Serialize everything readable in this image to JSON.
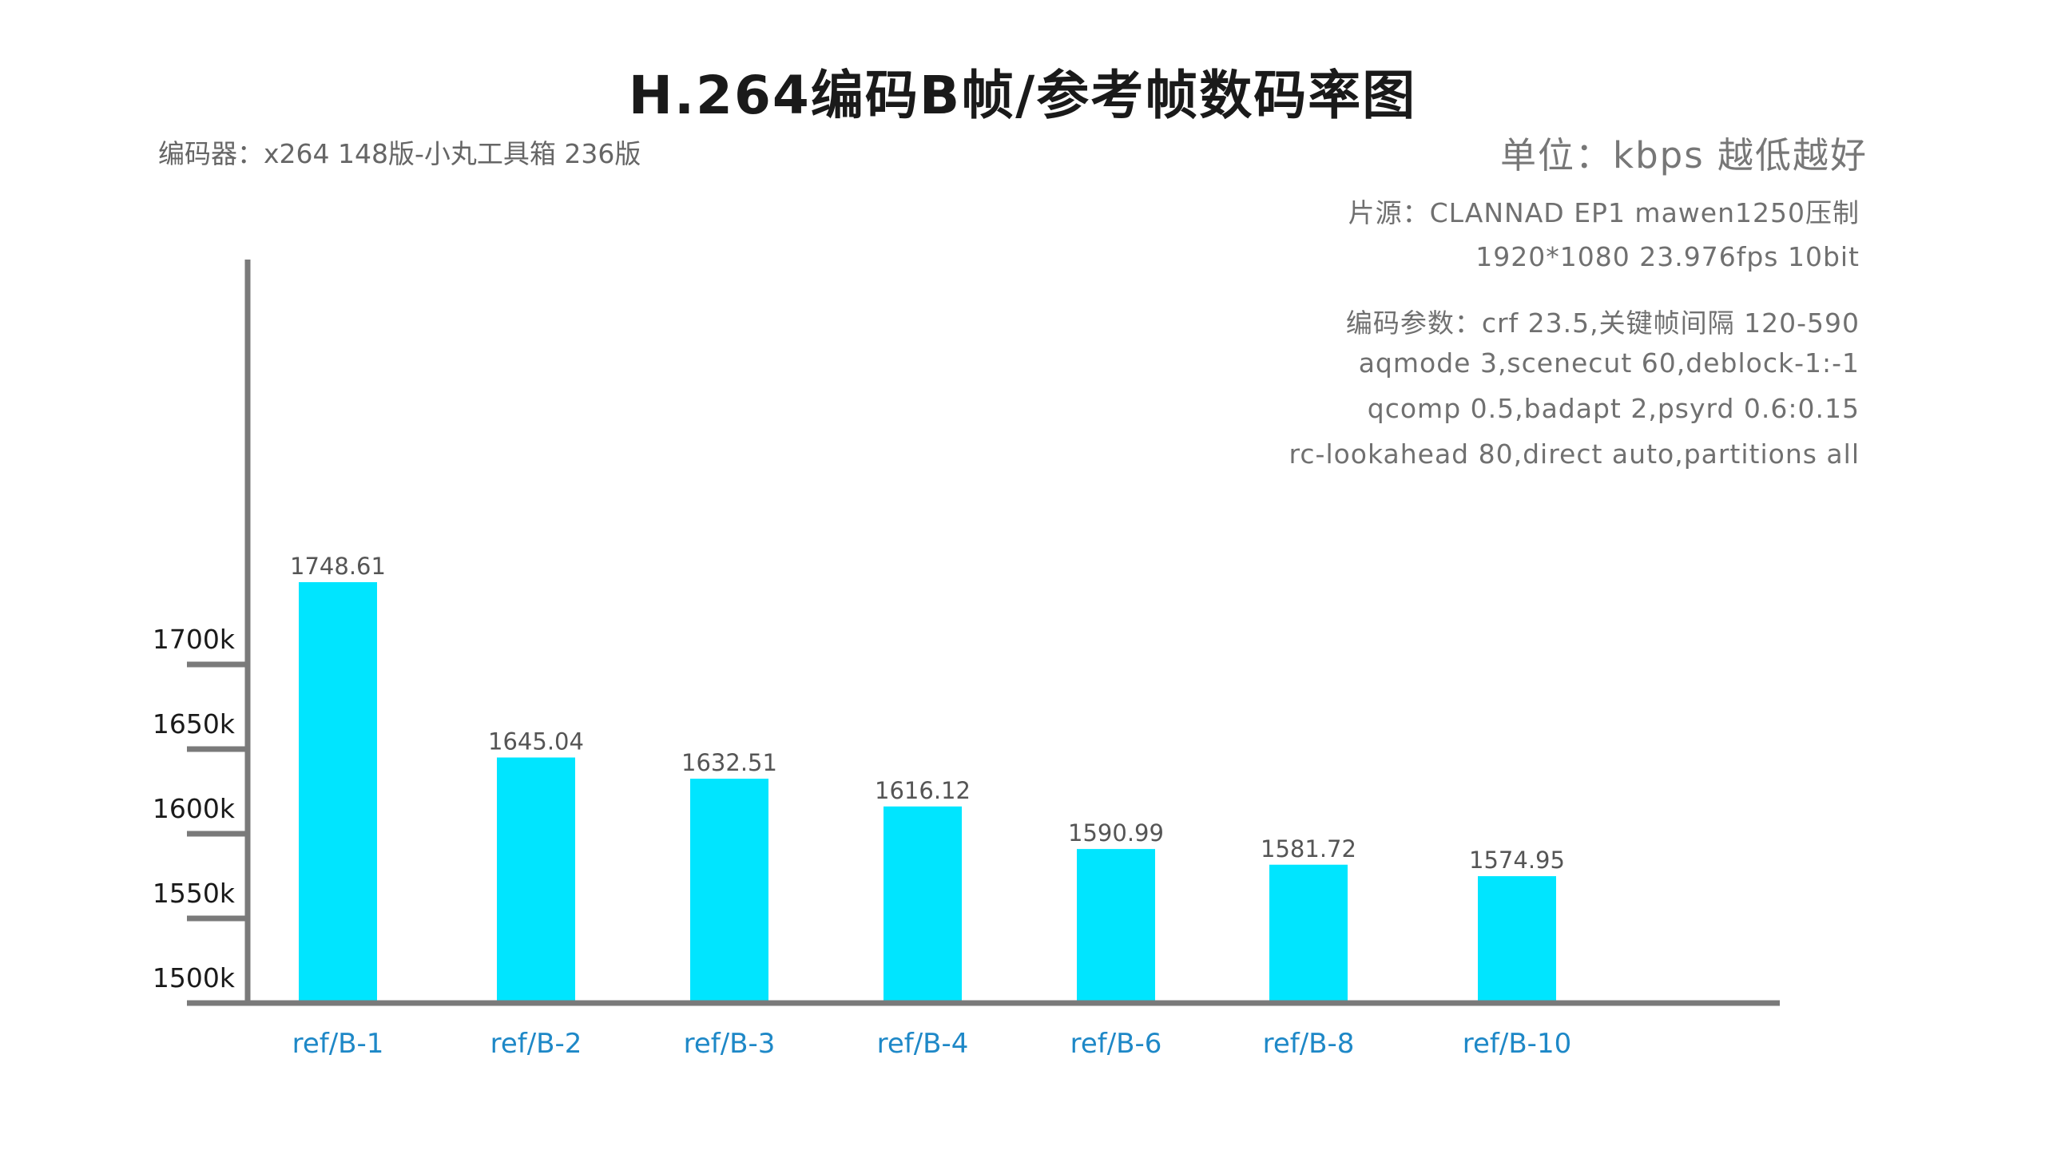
{
  "chart_data": {
    "type": "bar",
    "title": "H.264编码B帧/参考帧数码率图",
    "categories": [
      "ref/B-1",
      "ref/B-2",
      "ref/B-3",
      "ref/B-4",
      "ref/B-6",
      "ref/B-8",
      "ref/B-10"
    ],
    "values": [
      1748.61,
      1645.04,
      1632.51,
      1616.12,
      1590.99,
      1581.72,
      1574.95
    ],
    "value_labels": [
      "1748.61",
      "1645.04",
      "1632.51",
      "1616.12",
      "1590.99",
      "1581.72",
      "1574.95"
    ],
    "yticks": [
      1500,
      1550,
      1600,
      1650,
      1700
    ],
    "ytick_labels": [
      "1500k",
      "1550k",
      "1600k",
      "1650k",
      "1700k"
    ],
    "ylim": [
      1500,
      1718
    ],
    "xlabel": "",
    "ylabel": "",
    "grid": false,
    "legend": "none",
    "bar_color": "#00e5ff",
    "axis_color": "#7a7a7a",
    "category_label_color": "#1e88c7"
  },
  "annotations": {
    "encoder": "编码器：x264 148版-小丸工具箱 236版",
    "unit": "单位：kbps  越低越好",
    "source_line1": "片源：CLANNAD EP1 mawen1250压制",
    "source_line2": "1920*1080 23.976fps 10bit",
    "params_line1": "编码参数：crf 23.5,关键帧间隔 120-590",
    "params_line2": "aqmode 3,scenecut 60,deblock-1:-1",
    "params_line3": "qcomp 0.5,badapt 2,psyrd 0.6:0.15",
    "params_line4": "rc-lookahead 80,direct auto,partitions all"
  }
}
